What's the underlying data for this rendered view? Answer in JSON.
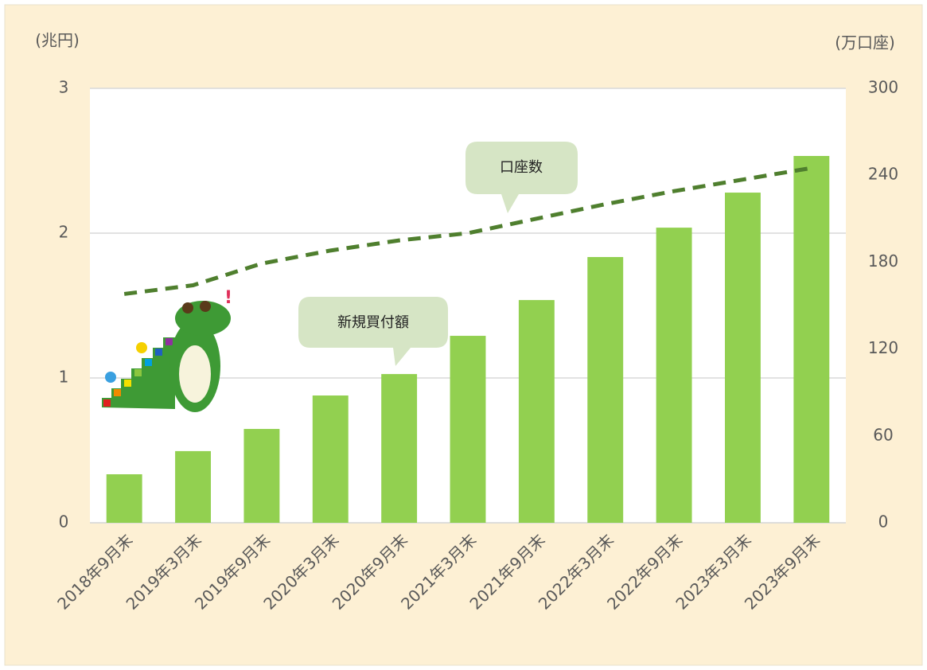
{
  "chart_data": {
    "type": "bar",
    "y_label": "(兆円)",
    "y2_label": "(万口座)",
    "categories": [
      "2018年9月末",
      "2019年3月末",
      "2019年9月末",
      "2020年3月末",
      "2020年9月末",
      "2021年3月末",
      "2021年9月末",
      "2022年3月末",
      "2022年9月末",
      "2023年3月末",
      "2023年9月末"
    ],
    "series": [
      {
        "name": "新規買付額",
        "type": "bar",
        "color": "#92d050",
        "values": [
          0.335,
          0.495,
          0.648,
          0.879,
          1.027,
          1.291,
          1.538,
          1.835,
          2.038,
          2.28,
          2.533
        ]
      },
      {
        "name": "口座数",
        "type": "line",
        "axis": "y2",
        "dashed": true,
        "color": "#4f7f2e",
        "values": [
          158,
          164,
          179,
          188,
          195,
          200,
          210,
          220,
          229,
          237,
          245
        ]
      }
    ],
    "ylim": [
      0,
      3
    ],
    "yticks": [
      0,
      1,
      2,
      3
    ],
    "y2lim": [
      0,
      300
    ],
    "y2ticks": [
      0,
      60,
      120,
      180,
      240,
      300
    ],
    "grid": true
  }
}
